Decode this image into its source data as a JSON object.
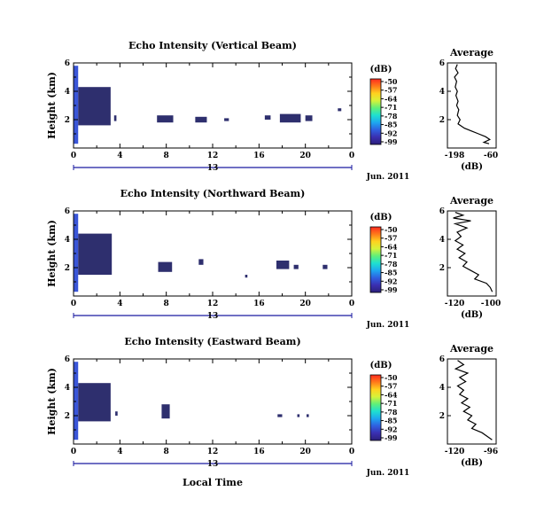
{
  "figure": {
    "date_label": "Jun. 2011",
    "xlabel": "Local Time"
  },
  "colorbar": {
    "unit": "(dB)",
    "ticks": [
      "-50",
      "-57",
      "-64",
      "-71",
      "-78",
      "-85",
      "-92",
      "-99"
    ],
    "colors": [
      "#ff2a1f",
      "#ff7a1a",
      "#ffd21f",
      "#d6f23a",
      "#5ff07a",
      "#1ee0d0",
      "#1ea7f0",
      "#2f5fe0",
      "#3a2fb0",
      "#2b1f7a"
    ]
  },
  "chart_data": [
    {
      "type": "heatmap",
      "title": "Echo Intensity (Vertical Beam)",
      "ylabel": "Height (km)",
      "xlim": [
        0,
        24
      ],
      "ylim": [
        0,
        6
      ],
      "x_ticks": [
        "0",
        "4",
        "8",
        "12",
        "16",
        "20",
        "0"
      ],
      "y_ticks": [
        "6",
        "4",
        "2"
      ],
      "day_label": "13",
      "blocks": [
        {
          "x": [
            0.0,
            0.4
          ],
          "y": [
            0.3,
            5.8
          ],
          "level": 0.92
        },
        {
          "x": [
            0.4,
            3.2
          ],
          "y": [
            1.6,
            4.3
          ],
          "level": 0.95
        },
        {
          "x": [
            3.5,
            3.7
          ],
          "y": [
            1.9,
            2.3
          ],
          "level": 0.95
        },
        {
          "x": [
            7.2,
            8.6
          ],
          "y": [
            1.8,
            2.3
          ],
          "level": 0.95
        },
        {
          "x": [
            10.5,
            11.5
          ],
          "y": [
            1.8,
            2.2
          ],
          "level": 0.95
        },
        {
          "x": [
            13.0,
            13.4
          ],
          "y": [
            1.9,
            2.1
          ],
          "level": 0.95
        },
        {
          "x": [
            16.5,
            17.0
          ],
          "y": [
            2.0,
            2.3
          ],
          "level": 0.95
        },
        {
          "x": [
            17.8,
            19.6
          ],
          "y": [
            1.8,
            2.4
          ],
          "level": 0.95
        },
        {
          "x": [
            20.0,
            20.6
          ],
          "y": [
            1.9,
            2.3
          ],
          "level": 0.95
        },
        {
          "x": [
            22.8,
            23.1
          ],
          "y": [
            2.6,
            2.8
          ],
          "level": 0.95
        }
      ],
      "profile": {
        "title": "Average",
        "unit": "(dB)",
        "x_ticks": [
          "-198",
          "-60"
        ],
        "xlim": [
          -198,
          -60
        ],
        "points": [
          [
            -170,
            5.9
          ],
          [
            -175,
            5.6
          ],
          [
            -168,
            5.3
          ],
          [
            -178,
            5.0
          ],
          [
            -172,
            4.7
          ],
          [
            -176,
            4.3
          ],
          [
            -170,
            4.0
          ],
          [
            -174,
            3.7
          ],
          [
            -168,
            3.3
          ],
          [
            -172,
            3.0
          ],
          [
            -166,
            2.7
          ],
          [
            -170,
            2.3
          ],
          [
            -162,
            2.0
          ],
          [
            -168,
            1.7
          ],
          [
            -150,
            1.4
          ],
          [
            -130,
            1.2
          ],
          [
            -110,
            1.0
          ],
          [
            -90,
            0.8
          ],
          [
            -78,
            0.6
          ],
          [
            -95,
            0.4
          ],
          [
            -80,
            0.3
          ]
        ]
      }
    },
    {
      "type": "heatmap",
      "title": "Echo Intensity (Northward Beam)",
      "ylabel": "Height (km)",
      "xlim": [
        0,
        24
      ],
      "ylim": [
        0,
        6
      ],
      "x_ticks": [
        "0",
        "4",
        "8",
        "12",
        "16",
        "20",
        "0"
      ],
      "y_ticks": [
        "6",
        "4",
        "2"
      ],
      "day_label": "13",
      "blocks": [
        {
          "x": [
            0.0,
            0.4
          ],
          "y": [
            0.3,
            5.8
          ],
          "level": 0.92
        },
        {
          "x": [
            0.4,
            3.3
          ],
          "y": [
            1.5,
            4.4
          ],
          "level": 0.95
        },
        {
          "x": [
            7.3,
            8.5
          ],
          "y": [
            1.7,
            2.4
          ],
          "level": 0.95
        },
        {
          "x": [
            10.8,
            11.2
          ],
          "y": [
            2.2,
            2.6
          ],
          "level": 0.95
        },
        {
          "x": [
            14.8,
            15.0
          ],
          "y": [
            1.3,
            1.5
          ],
          "level": 0.95
        },
        {
          "x": [
            17.5,
            18.6
          ],
          "y": [
            1.9,
            2.5
          ],
          "level": 0.95
        },
        {
          "x": [
            19.0,
            19.4
          ],
          "y": [
            1.9,
            2.2
          ],
          "level": 0.95
        },
        {
          "x": [
            21.5,
            21.9
          ],
          "y": [
            1.9,
            2.2
          ],
          "level": 0.95
        }
      ],
      "profile": {
        "title": "Average",
        "unit": "(dB)",
        "x_ticks": [
          "-120",
          "-100"
        ],
        "xlim": [
          -120,
          -95
        ],
        "points": [
          [
            -116,
            5.9
          ],
          [
            -112,
            5.7
          ],
          [
            -117,
            5.5
          ],
          [
            -108,
            5.3
          ],
          [
            -116,
            5.1
          ],
          [
            -110,
            4.8
          ],
          [
            -115,
            4.5
          ],
          [
            -113,
            4.2
          ],
          [
            -116,
            3.9
          ],
          [
            -112,
            3.6
          ],
          [
            -115,
            3.3
          ],
          [
            -111,
            3.0
          ],
          [
            -114,
            2.7
          ],
          [
            -110,
            2.4
          ],
          [
            -112,
            2.1
          ],
          [
            -108,
            1.8
          ],
          [
            -104,
            1.5
          ],
          [
            -106,
            1.2
          ],
          [
            -100,
            0.9
          ],
          [
            -98,
            0.6
          ],
          [
            -97,
            0.3
          ]
        ]
      }
    },
    {
      "type": "heatmap",
      "title": "Echo Intensity (Eastward Beam)",
      "ylabel": "Height (km)",
      "xlim": [
        0,
        24
      ],
      "ylim": [
        0,
        6
      ],
      "x_ticks": [
        "0",
        "4",
        "8",
        "12",
        "16",
        "20",
        "0"
      ],
      "y_ticks": [
        "6",
        "4",
        "2"
      ],
      "day_label": "13",
      "blocks": [
        {
          "x": [
            0.0,
            0.4
          ],
          "y": [
            0.3,
            5.8
          ],
          "level": 0.92
        },
        {
          "x": [
            0.4,
            3.2
          ],
          "y": [
            1.6,
            4.3
          ],
          "level": 0.95
        },
        {
          "x": [
            3.6,
            3.8
          ],
          "y": [
            2.0,
            2.3
          ],
          "level": 0.95
        },
        {
          "x": [
            7.6,
            8.3
          ],
          "y": [
            1.8,
            2.8
          ],
          "level": 0.95
        },
        {
          "x": [
            17.6,
            18.0
          ],
          "y": [
            1.9,
            2.1
          ],
          "level": 0.95
        },
        {
          "x": [
            19.3,
            19.5
          ],
          "y": [
            1.9,
            2.1
          ],
          "level": 0.95
        },
        {
          "x": [
            20.1,
            20.3
          ],
          "y": [
            1.9,
            2.1
          ],
          "level": 0.95
        }
      ],
      "profile": {
        "title": "Average",
        "unit": "(dB)",
        "x_ticks": [
          "-120",
          "-96"
        ],
        "xlim": [
          -120,
          -96
        ],
        "points": [
          [
            -115,
            5.9
          ],
          [
            -112,
            5.6
          ],
          [
            -116,
            5.3
          ],
          [
            -110,
            5.0
          ],
          [
            -114,
            4.7
          ],
          [
            -111,
            4.4
          ],
          [
            -115,
            4.1
          ],
          [
            -112,
            3.8
          ],
          [
            -114,
            3.5
          ],
          [
            -110,
            3.2
          ],
          [
            -113,
            2.9
          ],
          [
            -109,
            2.6
          ],
          [
            -112,
            2.3
          ],
          [
            -108,
            2.0
          ],
          [
            -110,
            1.7
          ],
          [
            -106,
            1.4
          ],
          [
            -108,
            1.1
          ],
          [
            -103,
            0.8
          ],
          [
            -100,
            0.5
          ],
          [
            -98,
            0.3
          ]
        ]
      }
    }
  ]
}
